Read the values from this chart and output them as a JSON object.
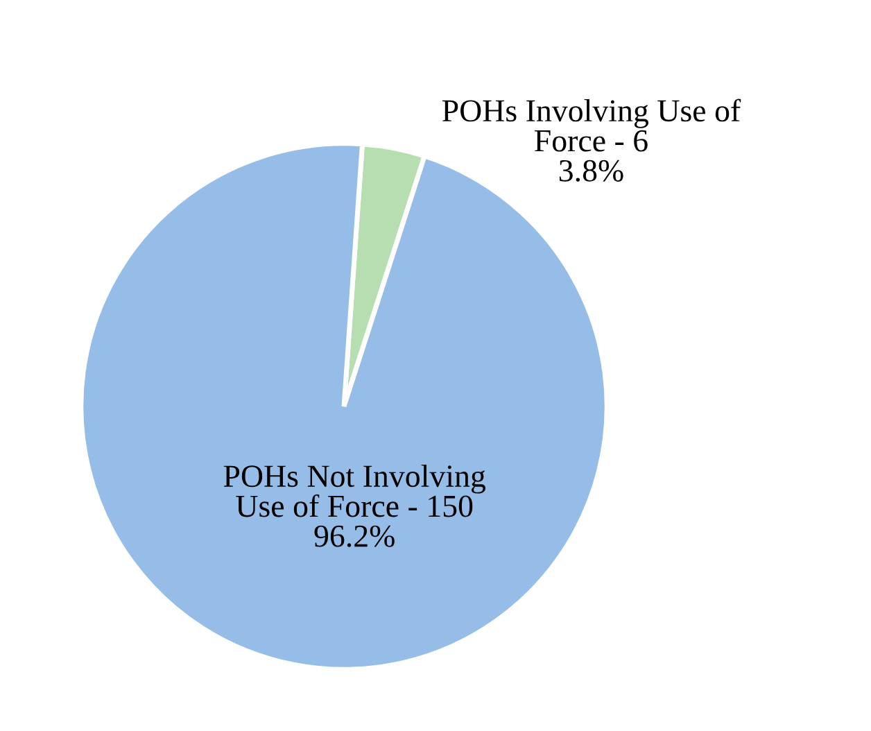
{
  "chart_data": {
    "type": "pie",
    "categories": [
      "POHs Involving Use of\nForce",
      "POHs Not Involving\nUse of Force"
    ],
    "values": [
      6,
      150
    ],
    "colors": [
      "#b7deb0",
      "#96bde7"
    ],
    "value_labels": [
      "6\n3.8%",
      "150\n96.2%"
    ],
    "legend": false
  }
}
